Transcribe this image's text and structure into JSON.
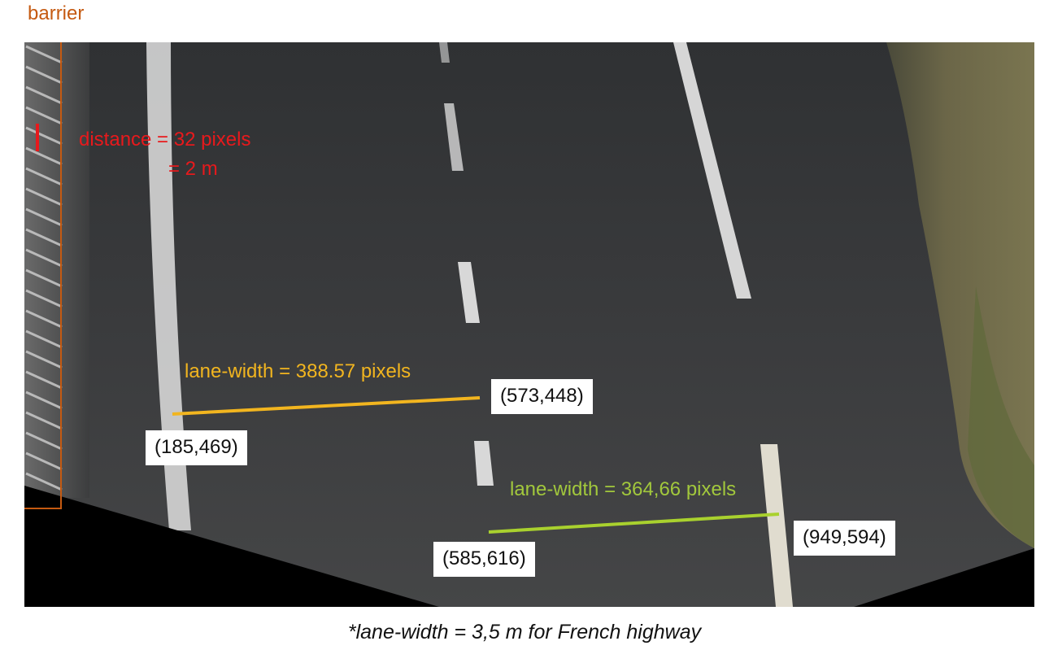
{
  "labels": {
    "barrier": "barrier",
    "distance_line1": "distance = 32 pixels",
    "distance_line2": "= 2 m",
    "lane_width_top": "lane-width = 388.57 pixels",
    "lane_width_bottom": "lane-width = 364,66 pixels",
    "caption": "*lane-width = 3,5 m for French highway"
  },
  "points": {
    "top_right": "(573,448)",
    "top_left": "(185,469)",
    "bottom_left": "(585,616)",
    "bottom_right": "(949,594)"
  },
  "colors": {
    "barrier_box": "#c55a11",
    "distance_marker": "#e8191c",
    "lane_top": "#f2b51f",
    "lane_bottom": "#a9d12e",
    "lane_bottom_text": "#a2c83c",
    "asphalt": "#3a3b3d",
    "verge": "#5b5a3a"
  }
}
